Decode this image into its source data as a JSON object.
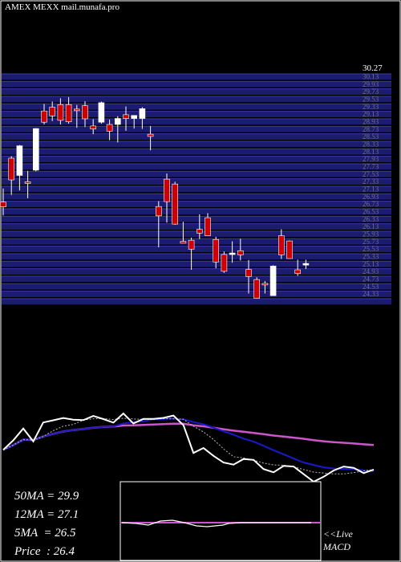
{
  "header": {
    "ticker_line": "AMEX  MEXX  mail.munafa.pro"
  },
  "chart_data": {
    "type": "candlestick",
    "price_axis": {
      "top_label": "30.27",
      "ticks": [
        "30.13",
        "29.93",
        "29.73",
        "29.53",
        "29.33",
        "29.13",
        "28.93",
        "28.73",
        "28.53",
        "28.33",
        "28.13",
        "27.93",
        "27.73",
        "27.53",
        "27.33",
        "27.13",
        "26.93",
        "26.73",
        "26.53",
        "26.33",
        "26.13",
        "25.93",
        "25.73",
        "25.53",
        "25.33",
        "25.13",
        "24.93",
        "24.73",
        "24.53",
        "24.33"
      ],
      "ylim": [
        24.3,
        30.3
      ]
    },
    "candles": [
      {
        "o": 26.88,
        "h": 27.24,
        "l": 26.52,
        "c": 26.75
      },
      {
        "o": 28.05,
        "h": 28.1,
        "l": 27.07,
        "c": 27.47
      },
      {
        "o": 27.59,
        "h": 28.4,
        "l": 27.19,
        "c": 28.38
      },
      {
        "o": 27.42,
        "h": 27.71,
        "l": 26.98,
        "c": 27.39
      },
      {
        "o": 27.73,
        "h": 28.85,
        "l": 27.7,
        "c": 28.84
      },
      {
        "o": 29.31,
        "h": 29.5,
        "l": 28.95,
        "c": 29.01
      },
      {
        "o": 29.41,
        "h": 29.56,
        "l": 29.04,
        "c": 29.18
      },
      {
        "o": 29.48,
        "h": 29.65,
        "l": 28.95,
        "c": 29.06
      },
      {
        "o": 29.48,
        "h": 29.68,
        "l": 28.97,
        "c": 29.02
      },
      {
        "o": 29.36,
        "h": 29.47,
        "l": 28.86,
        "c": 29.34
      },
      {
        "o": 29.45,
        "h": 29.57,
        "l": 28.88,
        "c": 29.1
      },
      {
        "o": 28.91,
        "h": 29.09,
        "l": 28.69,
        "c": 28.83
      },
      {
        "o": 29.01,
        "h": 29.56,
        "l": 28.97,
        "c": 29.53
      },
      {
        "o": 28.95,
        "h": 29.08,
        "l": 28.53,
        "c": 28.77
      },
      {
        "o": 28.95,
        "h": 29.17,
        "l": 28.47,
        "c": 29.11
      },
      {
        "o": 29.21,
        "h": 29.43,
        "l": 28.78,
        "c": 29.11
      },
      {
        "o": 29.11,
        "h": 29.19,
        "l": 28.84,
        "c": 29.19
      },
      {
        "o": 29.11,
        "h": 29.41,
        "l": 28.83,
        "c": 29.37
      },
      {
        "o": 28.69,
        "h": 28.91,
        "l": 28.26,
        "c": 28.63
      },
      {
        "o": 26.76,
        "h": 26.9,
        "l": 25.67,
        "c": 26.51
      },
      {
        "o": 27.49,
        "h": 27.64,
        "l": 26.33,
        "c": 26.89
      },
      {
        "o": 27.36,
        "h": 27.42,
        "l": 26.27,
        "c": 26.29
      },
      {
        "o": 25.83,
        "h": 26.35,
        "l": 25.83,
        "c": 25.78
      },
      {
        "o": 25.86,
        "h": 25.93,
        "l": 25.07,
        "c": 25.62
      },
      {
        "o": 26.15,
        "h": 26.55,
        "l": 25.89,
        "c": 26.05
      },
      {
        "o": 26.46,
        "h": 26.58,
        "l": 25.98,
        "c": 25.98
      },
      {
        "o": 25.88,
        "h": 25.95,
        "l": 25.11,
        "c": 25.28
      },
      {
        "o": 25.48,
        "h": 25.56,
        "l": 24.99,
        "c": 25.03
      },
      {
        "o": 25.51,
        "h": 25.83,
        "l": 25.26,
        "c": 25.52
      },
      {
        "o": 25.58,
        "h": 25.9,
        "l": 25.32,
        "c": 25.47
      },
      {
        "o": 25.08,
        "h": 25.33,
        "l": 24.44,
        "c": 24.89
      },
      {
        "o": 24.81,
        "h": 24.87,
        "l": 24.33,
        "c": 24.31
      },
      {
        "o": 24.71,
        "h": 24.77,
        "l": 24.44,
        "c": 24.69
      },
      {
        "o": 24.38,
        "h": 25.19,
        "l": 24.38,
        "c": 25.17
      },
      {
        "o": 25.98,
        "h": 26.15,
        "l": 25.36,
        "c": 25.47
      },
      {
        "o": 25.84,
        "h": 25.85,
        "l": 25.42,
        "c": 25.37
      },
      {
        "o": 25.07,
        "h": 25.34,
        "l": 24.91,
        "c": 24.97
      },
      {
        "o": 25.21,
        "h": 25.34,
        "l": 25.09,
        "c": 25.24
      }
    ],
    "colors": {
      "up": "#ffffff",
      "down": "#cc0000",
      "band": "#1c1c6e",
      "band_edge": "#3a3aa8",
      "ma50": "#cc55cc",
      "ma12": "#1a1acc",
      "ma5": "#ffffff",
      "macd_bg": "#000000",
      "macd_line": "#cc55cc"
    },
    "stats": [
      {
        "label": "50MA",
        "value": "29.9"
      },
      {
        "label": "12MA",
        "value": "27.1"
      },
      {
        "label": "5MA",
        "value": "26.5"
      },
      {
        "label": "Price",
        "value": "26.4"
      }
    ],
    "panel_labels": {
      "live": "<<Live",
      "macd": "MACD"
    }
  }
}
